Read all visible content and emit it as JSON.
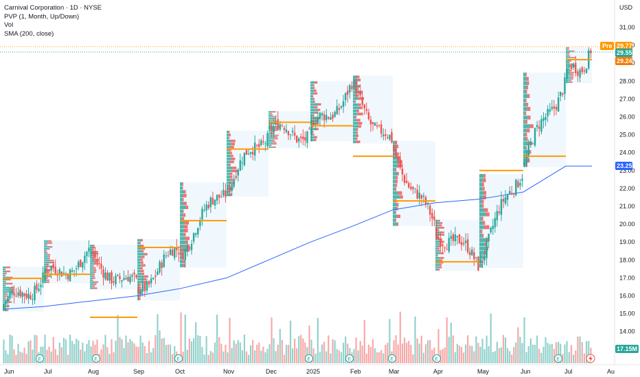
{
  "legend": {
    "symbol": "Carnival Corporation · 1D · NYSE",
    "indicator_1": "PVP (1, Month, Up/Down)",
    "indicator_2": "Vol",
    "indicator_3": "SMA (200, close)"
  },
  "axis": {
    "currency": "USD"
  },
  "price_tags": {
    "pre_label": "Pre",
    "pre_value": "29.77",
    "last": "29.55",
    "poc": "29.24",
    "sma": "23.25",
    "volume": "17.15M"
  },
  "colors": {
    "up": "#26a69a",
    "down": "#ef5350",
    "sma": "#2962ff",
    "poc": "#ff9800",
    "profile_box": "#e3f2fd",
    "tag_pre": "#ff9800",
    "tag_last": "#26a69a",
    "tag_poc": "#f57c00",
    "tag_sma": "#2962ff"
  },
  "chart_data": {
    "type": "candlestick",
    "title": "Carnival Corporation · 1D · NYSE",
    "y_axis": {
      "ticks": [
        14,
        15,
        16,
        17,
        18,
        19,
        20,
        21,
        22,
        23,
        24,
        25,
        26,
        27,
        28,
        29,
        30,
        31
      ],
      "ylim": [
        13.0,
        31.6
      ],
      "unit": "USD"
    },
    "x_axis": {
      "ticks": [
        "Jun",
        "Jul",
        "Aug",
        "Sep",
        "Oct",
        "Nov",
        "Dec",
        "2025",
        "Feb",
        "Mar",
        "Apr",
        "May",
        "Jun",
        "Jul",
        "Au"
      ]
    },
    "monthly_close": [
      {
        "month": "Jun",
        "close": 17.0
      },
      {
        "month": "Jul",
        "close": 18.2
      },
      {
        "month": "Aug",
        "close": 16.4
      },
      {
        "month": "Sep",
        "close": 18.5
      },
      {
        "month": "Oct",
        "close": 22.0
      },
      {
        "month": "Nov",
        "close": 25.2
      },
      {
        "month": "Dec",
        "close": 25.1
      },
      {
        "month": "2025-Jan",
        "close": 27.6
      },
      {
        "month": "Feb",
        "close": 24.3
      },
      {
        "month": "Mar",
        "close": 19.8
      },
      {
        "month": "Apr",
        "close": 17.9
      },
      {
        "month": "May",
        "close": 23.2
      },
      {
        "month": "Jun",
        "close": 28.1
      },
      {
        "month": "Jul",
        "close": 29.55
      }
    ],
    "poc_levels": [
      {
        "month": "Jun",
        "price": 16.97
      },
      {
        "month": "Jul",
        "price": 17.2
      },
      {
        "month": "Aug",
        "price": 14.8
      },
      {
        "month": "Sep",
        "price": 18.7
      },
      {
        "month": "Oct",
        "price": 20.2
      },
      {
        "month": "Nov",
        "price": 24.2
      },
      {
        "month": "Dec",
        "price": 25.7
      },
      {
        "month": "2025-Jan",
        "price": 25.5
      },
      {
        "month": "Feb",
        "price": 23.8
      },
      {
        "month": "Mar",
        "price": 21.3
      },
      {
        "month": "Apr",
        "price": 17.9
      },
      {
        "month": "May",
        "price": 23.0
      },
      {
        "month": "Jun",
        "price": 23.8
      },
      {
        "month": "Jul",
        "price": 29.2
      }
    ],
    "sma_200": [
      {
        "month": "Jun",
        "value": 15.25
      },
      {
        "month": "Jul",
        "value": 15.4
      },
      {
        "month": "Aug",
        "value": 15.7
      },
      {
        "month": "Sep",
        "value": 16.0
      },
      {
        "month": "Oct",
        "value": 16.4
      },
      {
        "month": "Nov",
        "value": 17.0
      },
      {
        "month": "Dec",
        "value": 18.0
      },
      {
        "month": "2025-Jan",
        "value": 19.0
      },
      {
        "month": "Feb",
        "value": 19.9
      },
      {
        "month": "Mar",
        "value": 20.8
      },
      {
        "month": "Apr",
        "value": 21.2
      },
      {
        "month": "May",
        "value": 21.4
      },
      {
        "month": "Jun",
        "value": 21.8
      },
      {
        "month": "Jul",
        "value": 23.25
      }
    ],
    "last_price": 29.55,
    "pre_market": 29.77,
    "current_volume": "17.15M",
    "grid": false,
    "legend_position": "top-left"
  }
}
